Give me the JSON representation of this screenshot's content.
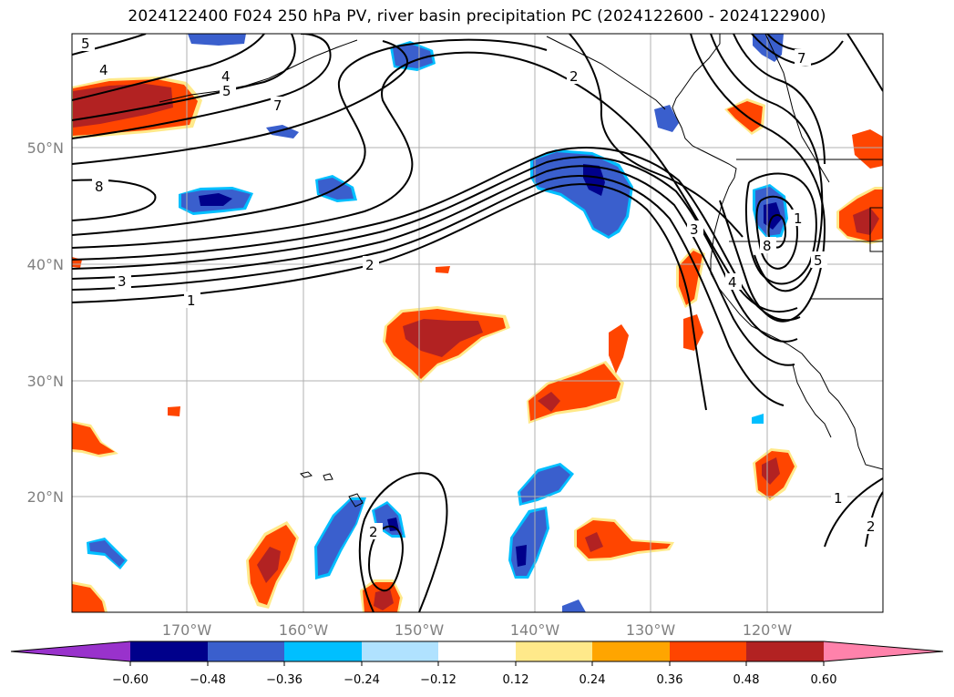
{
  "title": "2024122400 F024 250 hPa PV, river basin precipitation PC (2024122600 - 2024122900)",
  "map": {
    "lat_labels": [
      "50°N",
      "40°N",
      "30°N",
      "20°N"
    ],
    "lon_labels": [
      "170°W",
      "160°W",
      "150°W",
      "140°W",
      "130°W",
      "120°W"
    ],
    "contour_labels": [
      "5",
      "4",
      "4",
      "5",
      "7",
      "8",
      "3",
      "1",
      "2",
      "2",
      "3",
      "4",
      "5",
      "8",
      "7",
      "1",
      "2",
      "1",
      "2"
    ],
    "colors": {
      "pc_pos": [
        "#ffe98a",
        "#ffa500",
        "#ff4500",
        "#b22222"
      ],
      "pc_neg": [
        "#00bfff",
        "#3a5fcd",
        "#00008b"
      ]
    }
  },
  "colorbar": {
    "ticks": [
      "−0.60",
      "−0.48",
      "−0.36",
      "−0.24",
      "−0.12",
      "0.12",
      "0.24",
      "0.36",
      "0.48",
      "0.60"
    ],
    "colors": [
      "#9932cc",
      "#00008b",
      "#3a5fcd",
      "#00bfff",
      "#b0e2ff",
      "#ffffff",
      "#ffe98a",
      "#ffa500",
      "#ff4500",
      "#b22222",
      "#ff82ab"
    ]
  }
}
